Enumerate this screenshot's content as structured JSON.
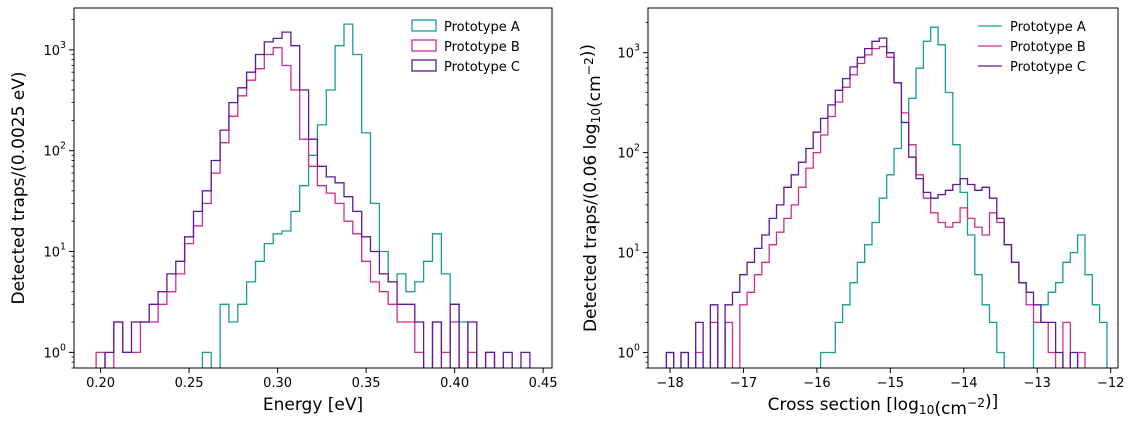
{
  "chart_data": [
    {
      "type": "histogram",
      "title": "",
      "xlabel": "Energy [eV]",
      "ylabel": "Detected traps/(0.0025 eV)",
      "xlim": [
        0.185,
        0.455
      ],
      "ylim": [
        0.7,
        2600
      ],
      "yscale": "log",
      "xticks": [
        0.2,
        0.25,
        0.3,
        0.35,
        0.4,
        0.45
      ],
      "xtick_labels": [
        "0.20",
        "0.25",
        "0.30",
        "0.35",
        "0.40",
        "0.45"
      ],
      "yticks": [
        1,
        10,
        100,
        1000
      ],
      "ytick_labels": [
        "10^0",
        "10^1",
        "10^2",
        "10^3"
      ],
      "legend_position": "top-right",
      "series": [
        {
          "name": "Prototype A",
          "color": "#1a9c96",
          "points": [
            [
              0.26,
              1
            ],
            [
              0.27,
              3
            ],
            [
              0.275,
              2
            ],
            [
              0.28,
              3
            ],
            [
              0.285,
              5
            ],
            [
              0.29,
              8
            ],
            [
              0.295,
              12
            ],
            [
              0.3,
              15
            ],
            [
              0.305,
              16
            ],
            [
              0.31,
              25
            ],
            [
              0.315,
              45
            ],
            [
              0.32,
              90
            ],
            [
              0.325,
              180
            ],
            [
              0.33,
              400
            ],
            [
              0.335,
              1100
            ],
            [
              0.34,
              1800
            ],
            [
              0.345,
              900
            ],
            [
              0.35,
              150
            ],
            [
              0.355,
              30
            ],
            [
              0.36,
              10
            ],
            [
              0.365,
              5
            ],
            [
              0.37,
              6
            ],
            [
              0.375,
              4
            ],
            [
              0.38,
              5
            ],
            [
              0.385,
              8
            ],
            [
              0.39,
              15
            ],
            [
              0.395,
              6
            ],
            [
              0.4,
              3
            ],
            [
              0.405,
              2
            ]
          ]
        },
        {
          "name": "Prototype B",
          "color": "#cc2f8f",
          "points": [
            [
              0.2,
              1
            ],
            [
              0.21,
              2
            ],
            [
              0.215,
              1
            ],
            [
              0.22,
              1
            ],
            [
              0.225,
              2
            ],
            [
              0.23,
              2
            ],
            [
              0.235,
              3
            ],
            [
              0.24,
              4
            ],
            [
              0.245,
              6
            ],
            [
              0.25,
              12
            ],
            [
              0.255,
              18
            ],
            [
              0.26,
              30
            ],
            [
              0.265,
              60
            ],
            [
              0.27,
              120
            ],
            [
              0.275,
              220
            ],
            [
              0.28,
              350
            ],
            [
              0.285,
              500
            ],
            [
              0.29,
              650
            ],
            [
              0.295,
              900
            ],
            [
              0.3,
              1050
            ],
            [
              0.305,
              700
            ],
            [
              0.31,
              400
            ],
            [
              0.315,
              130
            ],
            [
              0.32,
              70
            ],
            [
              0.325,
              45
            ],
            [
              0.33,
              38
            ],
            [
              0.335,
              30
            ],
            [
              0.34,
              20
            ],
            [
              0.345,
              15
            ],
            [
              0.35,
              8
            ],
            [
              0.355,
              5
            ],
            [
              0.36,
              4
            ],
            [
              0.365,
              3
            ],
            [
              0.37,
              2
            ],
            [
              0.375,
              2
            ],
            [
              0.38,
              1
            ],
            [
              0.39,
              2
            ],
            [
              0.395,
              1
            ],
            [
              0.4,
              2
            ],
            [
              0.41,
              1
            ],
            [
              0.42,
              1
            ]
          ]
        },
        {
          "name": "Prototype C",
          "color": "#5a1a9a",
          "points": [
            [
              0.205,
              1
            ],
            [
              0.21,
              2
            ],
            [
              0.215,
              1
            ],
            [
              0.22,
              2
            ],
            [
              0.225,
              2
            ],
            [
              0.23,
              3
            ],
            [
              0.235,
              4
            ],
            [
              0.24,
              6
            ],
            [
              0.245,
              8
            ],
            [
              0.25,
              14
            ],
            [
              0.255,
              25
            ],
            [
              0.26,
              40
            ],
            [
              0.265,
              80
            ],
            [
              0.27,
              160
            ],
            [
              0.275,
              300
            ],
            [
              0.28,
              420
            ],
            [
              0.285,
              600
            ],
            [
              0.29,
              900
            ],
            [
              0.295,
              1200
            ],
            [
              0.3,
              1300
            ],
            [
              0.305,
              1500
            ],
            [
              0.31,
              1100
            ],
            [
              0.315,
              400
            ],
            [
              0.32,
              130
            ],
            [
              0.325,
              70
            ],
            [
              0.33,
              55
            ],
            [
              0.335,
              48
            ],
            [
              0.34,
              35
            ],
            [
              0.345,
              25
            ],
            [
              0.35,
              14
            ],
            [
              0.355,
              10
            ],
            [
              0.36,
              6
            ],
            [
              0.365,
              5
            ],
            [
              0.37,
              3
            ],
            [
              0.375,
              3
            ],
            [
              0.38,
              2
            ],
            [
              0.39,
              2
            ],
            [
              0.4,
              3
            ],
            [
              0.41,
              2
            ],
            [
              0.42,
              1
            ],
            [
              0.43,
              1
            ],
            [
              0.44,
              1
            ]
          ]
        }
      ]
    },
    {
      "type": "histogram",
      "title": "",
      "xlabel": "Cross section [log10(cm^-2)]",
      "ylabel": "Detected traps/(0.06 log10(cm^-2))",
      "xlim": [
        -18.3,
        -11.9
      ],
      "ylim": [
        0.7,
        2800
      ],
      "yscale": "log",
      "xticks": [
        -18,
        -17,
        -16,
        -15,
        -14,
        -13,
        -12
      ],
      "xtick_labels": [
        "−18",
        "−17",
        "−16",
        "−15",
        "−14",
        "−13",
        "−12"
      ],
      "yticks": [
        1,
        10,
        100,
        1000
      ],
      "ytick_labels": [
        "10^0",
        "10^1",
        "10^2",
        "10^3"
      ],
      "legend_position": "top-right",
      "series": [
        {
          "name": "Prototype A",
          "color": "#1a9c96",
          "points": [
            [
              -15.9,
              1
            ],
            [
              -15.8,
              1
            ],
            [
              -15.7,
              2
            ],
            [
              -15.6,
              3
            ],
            [
              -15.5,
              5
            ],
            [
              -15.4,
              8
            ],
            [
              -15.3,
              12
            ],
            [
              -15.2,
              20
            ],
            [
              -15.1,
              35
            ],
            [
              -15.0,
              60
            ],
            [
              -14.9,
              110
            ],
            [
              -14.8,
              200
            ],
            [
              -14.7,
              350
            ],
            [
              -14.6,
              700
            ],
            [
              -14.5,
              1300
            ],
            [
              -14.4,
              1800
            ],
            [
              -14.3,
              1200
            ],
            [
              -14.2,
              400
            ],
            [
              -14.1,
              120
            ],
            [
              -14.0,
              40
            ],
            [
              -13.9,
              15
            ],
            [
              -13.8,
              6
            ],
            [
              -13.7,
              3
            ],
            [
              -13.6,
              2
            ],
            [
              -13.5,
              1
            ],
            [
              -13.0,
              2
            ],
            [
              -12.9,
              3
            ],
            [
              -12.8,
              4
            ],
            [
              -12.7,
              5
            ],
            [
              -12.6,
              8
            ],
            [
              -12.5,
              10
            ],
            [
              -12.4,
              15
            ],
            [
              -12.3,
              6
            ],
            [
              -12.2,
              3
            ],
            [
              -12.1,
              2
            ]
          ]
        },
        {
          "name": "Prototype B",
          "color": "#cc2f8f",
          "points": [
            [
              -18.0,
              1
            ],
            [
              -17.8,
              1
            ],
            [
              -17.6,
              1
            ],
            [
              -17.4,
              2
            ],
            [
              -17.2,
              2
            ],
            [
              -17.0,
              3
            ],
            [
              -16.9,
              4
            ],
            [
              -16.8,
              6
            ],
            [
              -16.7,
              8
            ],
            [
              -16.6,
              12
            ],
            [
              -16.5,
              16
            ],
            [
              -16.4,
              22
            ],
            [
              -16.3,
              30
            ],
            [
              -16.2,
              45
            ],
            [
              -16.1,
              70
            ],
            [
              -16.0,
              100
            ],
            [
              -15.9,
              150
            ],
            [
              -15.8,
              230
            ],
            [
              -15.7,
              320
            ],
            [
              -15.6,
              450
            ],
            [
              -15.5,
              600
            ],
            [
              -15.4,
              780
            ],
            [
              -15.3,
              950
            ],
            [
              -15.2,
              1100
            ],
            [
              -15.1,
              1150
            ],
            [
              -15.0,
              900
            ],
            [
              -14.9,
              500
            ],
            [
              -14.8,
              250
            ],
            [
              -14.7,
              120
            ],
            [
              -14.6,
              60
            ],
            [
              -14.5,
              35
            ],
            [
              -14.4,
              25
            ],
            [
              -14.3,
              20
            ],
            [
              -14.2,
              18
            ],
            [
              -14.1,
              20
            ],
            [
              -14.0,
              28
            ],
            [
              -13.9,
              22
            ],
            [
              -13.8,
              18
            ],
            [
              -13.7,
              15
            ],
            [
              -13.6,
              25
            ],
            [
              -13.5,
              20
            ],
            [
              -13.4,
              12
            ],
            [
              -13.3,
              8
            ],
            [
              -13.2,
              5
            ],
            [
              -13.1,
              3
            ],
            [
              -13.0,
              2
            ],
            [
              -12.9,
              2
            ],
            [
              -12.8,
              1
            ],
            [
              -12.6,
              2
            ],
            [
              -12.4,
              1
            ]
          ]
        },
        {
          "name": "Prototype C",
          "color": "#5a1a9a",
          "points": [
            [
              -18.0,
              1
            ],
            [
              -17.8,
              1
            ],
            [
              -17.6,
              2
            ],
            [
              -17.4,
              3
            ],
            [
              -17.2,
              3
            ],
            [
              -17.1,
              4
            ],
            [
              -17.0,
              6
            ],
            [
              -16.9,
              8
            ],
            [
              -16.8,
              11
            ],
            [
              -16.7,
              15
            ],
            [
              -16.6,
              22
            ],
            [
              -16.5,
              30
            ],
            [
              -16.4,
              45
            ],
            [
              -16.3,
              60
            ],
            [
              -16.2,
              80
            ],
            [
              -16.1,
              110
            ],
            [
              -16.0,
              160
            ],
            [
              -15.9,
              220
            ],
            [
              -15.8,
              300
            ],
            [
              -15.7,
              420
            ],
            [
              -15.6,
              550
            ],
            [
              -15.5,
              720
            ],
            [
              -15.4,
              900
            ],
            [
              -15.3,
              1100
            ],
            [
              -15.2,
              1300
            ],
            [
              -15.1,
              1400
            ],
            [
              -15.0,
              1000
            ],
            [
              -14.9,
              500
            ],
            [
              -14.8,
              200
            ],
            [
              -14.7,
              90
            ],
            [
              -14.6,
              55
            ],
            [
              -14.5,
              40
            ],
            [
              -14.4,
              35
            ],
            [
              -14.3,
              38
            ],
            [
              -14.2,
              42
            ],
            [
              -14.1,
              48
            ],
            [
              -14.0,
              55
            ],
            [
              -13.9,
              48
            ],
            [
              -13.8,
              42
            ],
            [
              -13.7,
              45
            ],
            [
              -13.6,
              35
            ],
            [
              -13.5,
              22
            ],
            [
              -13.4,
              12
            ],
            [
              -13.3,
              8
            ],
            [
              -13.2,
              5
            ],
            [
              -13.1,
              4
            ],
            [
              -13.0,
              3
            ],
            [
              -12.9,
              2
            ],
            [
              -12.8,
              2
            ],
            [
              -12.7,
              1
            ],
            [
              -12.5,
              1
            ]
          ]
        }
      ]
    }
  ]
}
